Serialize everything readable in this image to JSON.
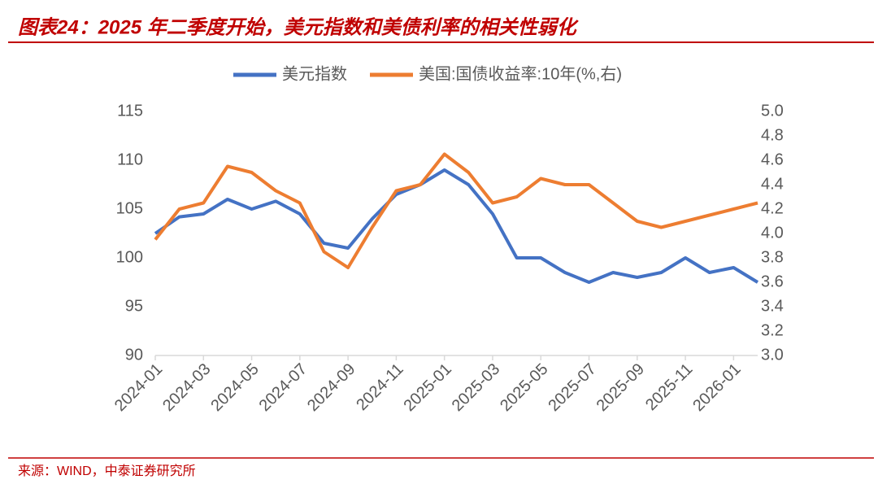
{
  "title": "图表24：2025 年二季度开始，美元指数和美债利率的相关性弱化",
  "source": "来源：WIND，中泰证券研究所",
  "chart_data": {
    "type": "line",
    "x": [
      "2024-01",
      "2024-02",
      "2024-03",
      "2024-04",
      "2024-05",
      "2024-06",
      "2024-07",
      "2024-08",
      "2024-09",
      "2024-10",
      "2024-11",
      "2024-12",
      "2025-01",
      "2025-02",
      "2025-03",
      "2025-04",
      "2025-05",
      "2025-06",
      "2025-07",
      "2025-08",
      "2025-09",
      "2025-10",
      "2025-11",
      "2025-12",
      "2026-01",
      "2026-02"
    ],
    "xlim": [
      "2024-01",
      "2026-02"
    ],
    "xticks": [
      "2024-01",
      "2024-03",
      "2024-05",
      "2024-07",
      "2024-09",
      "2024-11",
      "2025-01",
      "2025-03",
      "2025-05",
      "2025-07",
      "2025-09",
      "2025-11",
      "2026-01"
    ],
    "ylim": [
      90,
      115
    ],
    "yticks": [
      90,
      95,
      100,
      105,
      110,
      115
    ],
    "y2lim": [
      3,
      5
    ],
    "y2ticks": [
      {
        "value": 3,
        "label": "3.0"
      },
      3.2,
      3.4,
      3.6,
      3.8,
      {
        "value": 4,
        "label": "4.0"
      },
      4.2,
      4.4,
      4.6,
      4.8,
      {
        "value": 5,
        "label": "5.0"
      }
    ],
    "series": [
      {
        "name": "美元指数",
        "color": "#4472c4",
        "values": [
          102.5,
          104.2,
          104.5,
          106,
          105,
          105.8,
          104.5,
          101.5,
          101,
          104,
          106.5,
          107.5,
          109,
          107.5,
          104.5,
          100,
          100,
          98.5,
          97.5,
          98.5,
          98,
          98.5,
          100,
          98.5,
          99,
          97.5
        ]
      },
      {
        "name": "美国:国债收益率:10年(%,右)",
        "color": "#ed7d31",
        "axis": "y2",
        "values": [
          3.95,
          4.2,
          4.25,
          4.55,
          4.5,
          4.35,
          4.25,
          3.85,
          3.72,
          4.05,
          4.35,
          4.4,
          4.65,
          4.5,
          4.25,
          4.3,
          4.45,
          4.4,
          4.4,
          4.25,
          4.1,
          4.05,
          4.1,
          4.15,
          4.2,
          4.25
        ]
      }
    ]
  }
}
